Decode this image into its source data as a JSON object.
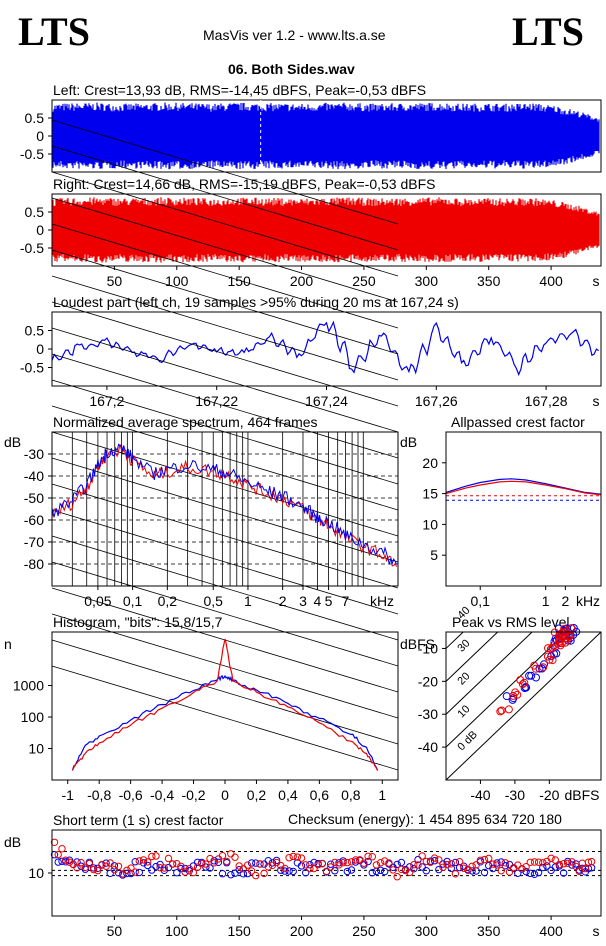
{
  "header": {
    "logo_left": "LTS",
    "logo_right": "LTS",
    "app_title": "MasVis ver 1.2 - www.lts.a.se",
    "file_name": "06. Both Sides.wav"
  },
  "colors": {
    "left": "#0000ee",
    "right": "#ee0000",
    "grid_dash": "#000000"
  },
  "chart_data": [
    {
      "id": "left_wave",
      "type": "area",
      "title": "Left: Crest=13,93 dB, RMS=-14,45 dBFS, Peak=-0,53 dBFS",
      "series": [
        {
          "name": "",
          "color": "#0000ee"
        }
      ],
      "xlim": [
        0,
        440
      ],
      "ylim": [
        -1,
        1
      ],
      "yticks": [
        "0.5",
        "0",
        "-0.5"
      ],
      "ytick_values": [
        0.5,
        0,
        -0.5
      ],
      "marker_x": 167.24,
      "envelope": [
        0.9,
        0.92,
        0.93,
        0.9,
        0.91,
        0.93,
        0.92,
        0.9,
        0.93,
        0.92,
        0.91,
        0.9,
        0.92,
        0.93,
        0.9,
        0.91,
        0.92,
        0.93,
        0.9,
        0.91,
        0.9,
        0.92,
        0.85,
        0.7,
        0.5
      ]
    },
    {
      "id": "right_wave",
      "type": "area",
      "title": "Right: Crest=14,66 dB, RMS=-15,19 dBFS, Peak=-0,53 dBFS",
      "series": [
        {
          "name": "",
          "color": "#ee0000"
        }
      ],
      "xlim": [
        0,
        440
      ],
      "ylim": [
        -1,
        1
      ],
      "xticks": [
        "50",
        "100",
        "150",
        "200",
        "250",
        "300",
        "350",
        "400",
        "s"
      ],
      "xtick_values": [
        50,
        100,
        150,
        200,
        250,
        300,
        350,
        400
      ],
      "yticks": [
        "0.5",
        "0",
        "-0.5"
      ],
      "ytick_values": [
        0.5,
        0,
        -0.5
      ],
      "envelope": [
        0.88,
        0.9,
        0.91,
        0.89,
        0.9,
        0.91,
        0.9,
        0.88,
        0.91,
        0.9,
        0.89,
        0.88,
        0.9,
        0.91,
        0.88,
        0.89,
        0.9,
        0.91,
        0.88,
        0.89,
        0.88,
        0.9,
        0.83,
        0.68,
        0.48
      ]
    },
    {
      "id": "loudest",
      "type": "line",
      "title": "Loudest part (left  ch, 19 samples >95% during 20 ms at 167,24 s)",
      "xlim": [
        167.19,
        167.29
      ],
      "ylim": [
        -1,
        1
      ],
      "xticks": [
        "167,2",
        "167,22",
        "167,24",
        "167,26",
        "167,28",
        "s"
      ],
      "xtick_values": [
        167.2,
        167.22,
        167.24,
        167.26,
        167.28
      ],
      "yticks": [
        "0.5",
        "0",
        "-0.5"
      ],
      "ytick_values": [
        0.5,
        0,
        -0.5
      ],
      "series": [
        {
          "name": "",
          "color": "#0000ee",
          "x": [
            167.19,
            167.195,
            167.2,
            167.205,
            167.21,
            167.215,
            167.22,
            167.225,
            167.23,
            167.235,
            167.24,
            167.245,
            167.25,
            167.255,
            167.26,
            167.265,
            167.27,
            167.275,
            167.28,
            167.285,
            167.29
          ],
          "y": [
            -0.3,
            0.05,
            0.2,
            -0.1,
            -0.25,
            0.15,
            -0.05,
            -0.1,
            0.3,
            -0.2,
            0.8,
            -0.5,
            0.4,
            -0.7,
            0.5,
            -0.4,
            0.3,
            -0.5,
            0.2,
            0.4,
            -0.2
          ]
        }
      ]
    },
    {
      "id": "spectrum",
      "type": "line",
      "title": "Normalized average spectrum, 464 frames",
      "ylabel": "dB",
      "xunit": "kHz",
      "xscale": "log",
      "xlim": [
        0.02,
        20
      ],
      "ylim": [
        -90,
        -20
      ],
      "xticks": [
        "0,05",
        "0,1",
        "0,2",
        "0,5",
        "1",
        "2",
        "3",
        "4",
        "5",
        "7",
        "kHz"
      ],
      "xtick_values": [
        0.05,
        0.1,
        0.2,
        0.5,
        1,
        2,
        3,
        4,
        5,
        7
      ],
      "yticks": [
        "-30",
        "-40",
        "-50",
        "-60",
        "-70",
        "-80"
      ],
      "ytick_values": [
        -30,
        -40,
        -50,
        -60,
        -70,
        -80
      ],
      "series": [
        {
          "name": "",
          "color": "#ee0000",
          "x": [
            0.02,
            0.03,
            0.04,
            0.05,
            0.06,
            0.08,
            0.1,
            0.15,
            0.2,
            0.3,
            0.5,
            0.7,
            1,
            1.5,
            2,
            3,
            4,
            5,
            7,
            10,
            15,
            20
          ],
          "y": [
            -58,
            -52,
            -45,
            -36,
            -30,
            -28,
            -33,
            -40,
            -38,
            -36,
            -38,
            -40,
            -44,
            -48,
            -50,
            -55,
            -60,
            -62,
            -68,
            -72,
            -76,
            -82
          ]
        },
        {
          "name": "",
          "color": "#0000ee",
          "x": [
            0.02,
            0.03,
            0.04,
            0.05,
            0.06,
            0.08,
            0.1,
            0.15,
            0.2,
            0.3,
            0.5,
            0.7,
            1,
            1.5,
            2,
            3,
            4,
            5,
            7,
            10,
            15,
            20
          ],
          "y": [
            -57,
            -51,
            -44,
            -35,
            -29,
            -27,
            -32,
            -39,
            -37,
            -35,
            -37,
            -39,
            -43,
            -47,
            -49,
            -54,
            -59,
            -61,
            -67,
            -71,
            -75,
            -81
          ]
        }
      ]
    },
    {
      "id": "allpassed",
      "type": "line",
      "title": "Allpassed crest factor",
      "ylabel": "dB",
      "xunit": "kHz",
      "xscale": "log",
      "xlim": [
        0.03,
        7
      ],
      "ylim": [
        0,
        25
      ],
      "xticks": [
        "0,1",
        "1",
        "2",
        "kHz"
      ],
      "xtick_values": [
        0.1,
        1,
        2
      ],
      "yticks": [
        "20",
        "15",
        "10",
        "5"
      ],
      "ytick_values": [
        20,
        15,
        10,
        5
      ],
      "ref_lines": [
        13.93,
        14.66
      ],
      "series": [
        {
          "name": "",
          "color": "#0000ee",
          "x": [
            0.03,
            0.06,
            0.1,
            0.2,
            0.3,
            0.5,
            1,
            2,
            4,
            7
          ],
          "y": [
            15.2,
            16.2,
            16.8,
            17.3,
            17.4,
            17.2,
            16.6,
            15.9,
            15.2,
            14.9
          ]
        },
        {
          "name": "",
          "color": "#ee0000",
          "x": [
            0.03,
            0.06,
            0.1,
            0.2,
            0.3,
            0.5,
            1,
            2,
            4,
            7
          ],
          "y": [
            15.0,
            15.9,
            16.4,
            16.9,
            17.0,
            16.9,
            16.4,
            15.8,
            15.1,
            14.8
          ]
        }
      ]
    },
    {
      "id": "histogram",
      "type": "line",
      "title": "Histogram, \"bits\": 15,8/15,7",
      "ylabel": "n",
      "yscale": "log",
      "xlim": [
        -1.1,
        1.1
      ],
      "ylim": [
        1,
        50000
      ],
      "xticks": [
        "-1",
        "-0,8",
        "-0,6",
        "-0,4",
        "-0,2",
        "0",
        "0,2",
        "0,4",
        "0,6",
        "0,8",
        "1"
      ],
      "xtick_values": [
        -1,
        -0.8,
        -0.6,
        -0.4,
        -0.2,
        0,
        0.2,
        0.4,
        0.6,
        0.8,
        1
      ],
      "yticks": [
        "1000",
        "100",
        "10"
      ],
      "ytick_values": [
        1000,
        100,
        10
      ],
      "series": [
        {
          "name": "",
          "color": "#0000ee",
          "x": [
            -0.97,
            -0.9,
            -0.8,
            -0.6,
            -0.4,
            -0.2,
            -0.05,
            0,
            0.05,
            0.2,
            0.4,
            0.6,
            0.8,
            0.9,
            0.97
          ],
          "y": [
            2,
            10,
            25,
            80,
            250,
            700,
            1500,
            2000,
            1500,
            720,
            270,
            90,
            28,
            11,
            2
          ]
        },
        {
          "name": "",
          "color": "#ee0000",
          "x": [
            -0.97,
            -0.9,
            -0.8,
            -0.6,
            -0.4,
            -0.2,
            -0.05,
            0,
            0.05,
            0.2,
            0.4,
            0.6,
            0.8,
            0.9,
            0.97
          ],
          "y": [
            2,
            6,
            15,
            55,
            190,
            600,
            1400,
            30000,
            1400,
            620,
            210,
            65,
            17,
            7,
            2
          ]
        }
      ]
    },
    {
      "id": "peak_rms",
      "type": "scatter",
      "title": "Peak vs RMS level",
      "ylabel": "dBFS",
      "xunit": "dBFS",
      "xlim": [
        -50,
        -5
      ],
      "ylim": [
        -50,
        -5
      ],
      "xticks": [
        "-40",
        "-30",
        "-20",
        "dBFS"
      ],
      "xtick_values": [
        -40,
        -30,
        -20
      ],
      "yticks": [
        "-10",
        "-20",
        "-30",
        "-40"
      ],
      "ytick_values": [
        -10,
        -20,
        -30,
        -40
      ],
      "crest_labels": [
        "40",
        "30",
        "20",
        "10",
        "0 dB"
      ],
      "crest_values": [
        40,
        30,
        20,
        10,
        0
      ],
      "series": [
        {
          "name": "",
          "color": "#0000ee",
          "x": [
            -16,
            -15,
            -17,
            -14,
            -18,
            -13,
            -16,
            -15,
            -19,
            -22,
            -25,
            -28,
            -31
          ],
          "y": [
            -7,
            -6,
            -8,
            -5,
            -9,
            -6,
            -5,
            -7,
            -12,
            -15,
            -18,
            -22,
            -25
          ]
        },
        {
          "name": "",
          "color": "#ee0000",
          "x": [
            -17,
            -16,
            -18,
            -15,
            -19,
            -14,
            -17,
            -16,
            -20,
            -23,
            -27,
            -30,
            -33
          ],
          "y": [
            -7,
            -6,
            -9,
            -5,
            -10,
            -6,
            -5,
            -8,
            -13,
            -16,
            -20,
            -24,
            -28
          ]
        }
      ]
    },
    {
      "id": "short_term",
      "type": "scatter",
      "title": "Short term (1 s) crest factor",
      "ylabel": "dB",
      "xlim": [
        0,
        440
      ],
      "ylim": [
        0,
        20
      ],
      "xticks": [
        "50",
        "100",
        "150",
        "200",
        "250",
        "300",
        "350",
        "400",
        "s"
      ],
      "xtick_values": [
        50,
        100,
        150,
        200,
        250,
        300,
        350,
        400
      ],
      "yticks": [
        "10"
      ],
      "ytick_values": [
        10
      ],
      "ref_lines": [
        9.4,
        10.6,
        15.0
      ],
      "series": [
        {
          "name": "",
          "color": "#0000ee",
          "x": [
            2,
            20,
            40,
            60,
            80,
            100,
            120,
            140,
            160,
            180,
            200,
            220,
            240,
            260,
            280,
            300,
            320,
            340,
            360,
            380,
            400,
            420,
            435
          ],
          "y": [
            14,
            12,
            11,
            11,
            12,
            11,
            13,
            11,
            11,
            12,
            11,
            11,
            12,
            11,
            11,
            12,
            11,
            11,
            12,
            11,
            11,
            12,
            10
          ]
        },
        {
          "name": "",
          "color": "#ee0000",
          "x": [
            2,
            20,
            40,
            60,
            80,
            100,
            120,
            140,
            160,
            180,
            200,
            220,
            240,
            260,
            280,
            300,
            320,
            340,
            360,
            380,
            400,
            420,
            435
          ],
          "y": [
            16,
            11,
            12,
            10,
            13,
            12,
            11,
            14,
            10,
            12,
            13,
            11,
            14,
            12,
            10,
            13,
            11,
            12,
            12,
            11,
            13,
            12,
            11
          ]
        }
      ]
    }
  ],
  "checksum": "Checksum (energy):  1 454 895 634 720 180"
}
